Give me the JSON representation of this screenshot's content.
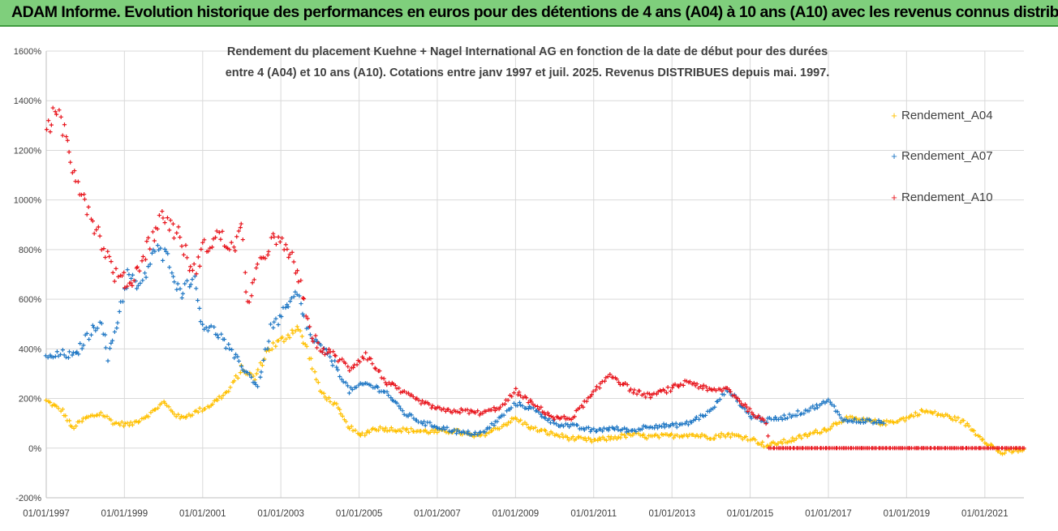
{
  "banner": {
    "title": "ADAM Informe. Evolution historique des performances en euros pour des détentions de 4 ans (A04) à 10 ans (A10) avec les revenus connus distribués"
  },
  "colors": {
    "banner_bg": "#7fcf7c",
    "A04": "#ffc000",
    "A07": "#1f77c4",
    "A10": "#e8141c",
    "grid": "#d9d9d9"
  },
  "chart_data": {
    "type": "scatter",
    "title_lines": [
      "Rendement du placement Kuehne + Nagel International AG en fonction de la date de début pour des durées",
      "entre 4 (A04) et 10 ans (A10).  Cotations entre janv 1997 et juil. 2025. Revenus DISTRIBUES depuis mai. 1997."
    ],
    "xlabel": "",
    "ylabel": "",
    "y_unit": "%",
    "ylim": [
      -200,
      1600
    ],
    "y_ticks": [
      "-200%",
      "0%",
      "200%",
      "400%",
      "600%",
      "800%",
      "1000%",
      "1200%",
      "1400%",
      "1600%"
    ],
    "x_ticks": [
      "01/01/1997",
      "01/01/1999",
      "01/01/2001",
      "01/01/2003",
      "01/01/2005",
      "01/01/2007",
      "01/01/2009",
      "01/01/2011",
      "01/01/2013",
      "01/01/2015",
      "01/01/2017",
      "01/01/2019",
      "01/01/2021"
    ],
    "xlim": [
      "1997-01-01",
      "2022-01-01"
    ],
    "grid": true,
    "legend_position": "right",
    "marker": "+",
    "series": [
      {
        "name": "Rendement_A04",
        "color": "#ffc000",
        "points": [
          [
            "1997-01-01",
            190
          ],
          [
            "1997-06-01",
            150
          ],
          [
            "1997-09-01",
            80
          ],
          [
            "1998-01-01",
            120
          ],
          [
            "1998-06-01",
            140
          ],
          [
            "1998-10-01",
            100
          ],
          [
            "1999-03-01",
            95
          ],
          [
            "1999-09-01",
            140
          ],
          [
            "2000-01-01",
            185
          ],
          [
            "2000-06-01",
            120
          ],
          [
            "2000-10-01",
            140
          ],
          [
            "2001-03-01",
            170
          ],
          [
            "2001-09-01",
            230
          ],
          [
            "2002-01-01",
            320
          ],
          [
            "2002-05-01",
            280
          ],
          [
            "2002-09-01",
            400
          ],
          [
            "2003-01-01",
            430
          ],
          [
            "2003-06-01",
            490
          ],
          [
            "2003-09-01",
            400
          ],
          [
            "2004-01-01",
            230
          ],
          [
            "2004-06-01",
            170
          ],
          [
            "2004-09-01",
            100
          ],
          [
            "2005-01-01",
            50
          ],
          [
            "2005-06-01",
            80
          ],
          [
            "2006-01-01",
            75
          ],
          [
            "2006-06-01",
            70
          ],
          [
            "2007-01-01",
            65
          ],
          [
            "2007-06-01",
            70
          ],
          [
            "2008-01-01",
            45
          ],
          [
            "2008-06-01",
            70
          ],
          [
            "2009-01-01",
            120
          ],
          [
            "2009-06-01",
            80
          ],
          [
            "2010-01-01",
            55
          ],
          [
            "2010-06-01",
            40
          ],
          [
            "2011-01-01",
            30
          ],
          [
            "2011-06-01",
            40
          ],
          [
            "2012-01-01",
            55
          ],
          [
            "2012-06-01",
            45
          ],
          [
            "2013-01-01",
            50
          ],
          [
            "2013-06-01",
            55
          ],
          [
            "2014-01-01",
            45
          ],
          [
            "2014-06-01",
            55
          ],
          [
            "2015-01-01",
            40
          ],
          [
            "2015-06-01",
            10
          ],
          [
            "2016-01-01",
            30
          ],
          [
            "2016-06-01",
            50
          ],
          [
            "2017-01-01",
            80
          ],
          [
            "2017-06-01",
            120
          ],
          [
            "2018-01-01",
            110
          ],
          [
            "2018-06-01",
            100
          ],
          [
            "2019-01-01",
            120
          ],
          [
            "2019-06-01",
            150
          ],
          [
            "2020-01-01",
            130
          ],
          [
            "2020-06-01",
            110
          ],
          [
            "2021-01-01",
            30
          ],
          [
            "2021-06-01",
            -20
          ],
          [
            "2022-01-01",
            -5
          ]
        ]
      },
      {
        "name": "Rendement_A07",
        "color": "#1f77c4",
        "points": [
          [
            "1997-01-01",
            360
          ],
          [
            "1997-06-01",
            380
          ],
          [
            "1997-10-01",
            370
          ],
          [
            "1998-01-01",
            440
          ],
          [
            "1998-06-01",
            520
          ],
          [
            "1998-08-01",
            360
          ],
          [
            "1998-11-01",
            520
          ],
          [
            "1999-02-01",
            700
          ],
          [
            "1999-06-01",
            640
          ],
          [
            "1999-10-01",
            800
          ],
          [
            "2000-03-01",
            760
          ],
          [
            "2000-06-01",
            620
          ],
          [
            "2000-10-01",
            700
          ],
          [
            "2001-01-01",
            500
          ],
          [
            "2001-06-01",
            460
          ],
          [
            "2001-10-01",
            380
          ],
          [
            "2002-03-01",
            300
          ],
          [
            "2002-06-01",
            250
          ],
          [
            "2002-10-01",
            480
          ],
          [
            "2003-03-01",
            560
          ],
          [
            "2003-06-01",
            620
          ],
          [
            "2003-10-01",
            450
          ],
          [
            "2004-03-01",
            380
          ],
          [
            "2004-06-01",
            330
          ],
          [
            "2004-10-01",
            230
          ],
          [
            "2005-03-01",
            260
          ],
          [
            "2005-09-01",
            230
          ],
          [
            "2006-03-01",
            140
          ],
          [
            "2006-09-01",
            100
          ],
          [
            "2007-03-01",
            80
          ],
          [
            "2007-09-01",
            60
          ],
          [
            "2008-03-01",
            60
          ],
          [
            "2008-09-01",
            130
          ],
          [
            "2009-01-01",
            180
          ],
          [
            "2009-06-01",
            160
          ],
          [
            "2010-01-01",
            100
          ],
          [
            "2010-06-01",
            90
          ],
          [
            "2011-01-01",
            70
          ],
          [
            "2011-06-01",
            80
          ],
          [
            "2012-01-01",
            70
          ],
          [
            "2012-06-01",
            90
          ],
          [
            "2013-01-01",
            90
          ],
          [
            "2013-06-01",
            100
          ],
          [
            "2014-01-01",
            150
          ],
          [
            "2014-06-01",
            240
          ],
          [
            "2015-01-01",
            130
          ],
          [
            "2015-06-01",
            110
          ],
          [
            "2016-01-01",
            130
          ],
          [
            "2016-06-01",
            150
          ],
          [
            "2017-01-01",
            190
          ],
          [
            "2017-06-01",
            110
          ],
          [
            "2018-01-01",
            110
          ],
          [
            "2018-06-01",
            100
          ]
        ]
      },
      {
        "name": "Rendement_A10",
        "color": "#e8141c",
        "points": [
          [
            "1997-01-01",
            1330
          ],
          [
            "1997-06-01",
            1300
          ],
          [
            "1997-09-01",
            1150
          ],
          [
            "1998-01-01",
            1000
          ],
          [
            "1998-06-01",
            830
          ],
          [
            "1998-10-01",
            700
          ],
          [
            "1999-03-01",
            660
          ],
          [
            "1999-09-01",
            840
          ],
          [
            "2000-01-01",
            940
          ],
          [
            "2000-06-01",
            850
          ],
          [
            "2000-10-01",
            700
          ],
          [
            "2001-01-01",
            800
          ],
          [
            "2001-06-01",
            860
          ],
          [
            "2001-10-01",
            800
          ],
          [
            "2002-01-01",
            880
          ],
          [
            "2002-03-01",
            580
          ],
          [
            "2002-06-01",
            720
          ],
          [
            "2002-10-01",
            840
          ],
          [
            "2003-03-01",
            800
          ],
          [
            "2003-06-01",
            720
          ],
          [
            "2003-10-01",
            470
          ],
          [
            "2004-01-01",
            400
          ],
          [
            "2004-06-01",
            370
          ],
          [
            "2004-10-01",
            320
          ],
          [
            "2005-03-01",
            380
          ],
          [
            "2005-09-01",
            270
          ],
          [
            "2006-03-01",
            220
          ],
          [
            "2006-09-01",
            180
          ],
          [
            "2007-03-01",
            150
          ],
          [
            "2007-09-01",
            150
          ],
          [
            "2008-03-01",
            140
          ],
          [
            "2008-09-01",
            170
          ],
          [
            "2009-01-01",
            230
          ],
          [
            "2009-06-01",
            180
          ],
          [
            "2010-01-01",
            120
          ],
          [
            "2010-06-01",
            120
          ],
          [
            "2011-01-01",
            220
          ],
          [
            "2011-06-01",
            300
          ],
          [
            "2012-01-01",
            230
          ],
          [
            "2012-06-01",
            210
          ],
          [
            "2013-01-01",
            240
          ],
          [
            "2013-06-01",
            270
          ],
          [
            "2014-01-01",
            230
          ],
          [
            "2014-06-01",
            240
          ],
          [
            "2015-01-01",
            150
          ],
          [
            "2015-06-01",
            100
          ],
          [
            "2015-07-01",
            0
          ],
          [
            "2016-06-01",
            0
          ],
          [
            "2017-06-01",
            0
          ],
          [
            "2018-06-01",
            0
          ],
          [
            "2019-06-01",
            0
          ],
          [
            "2020-06-01",
            0
          ],
          [
            "2021-06-01",
            0
          ],
          [
            "2022-01-01",
            0
          ]
        ]
      }
    ]
  }
}
